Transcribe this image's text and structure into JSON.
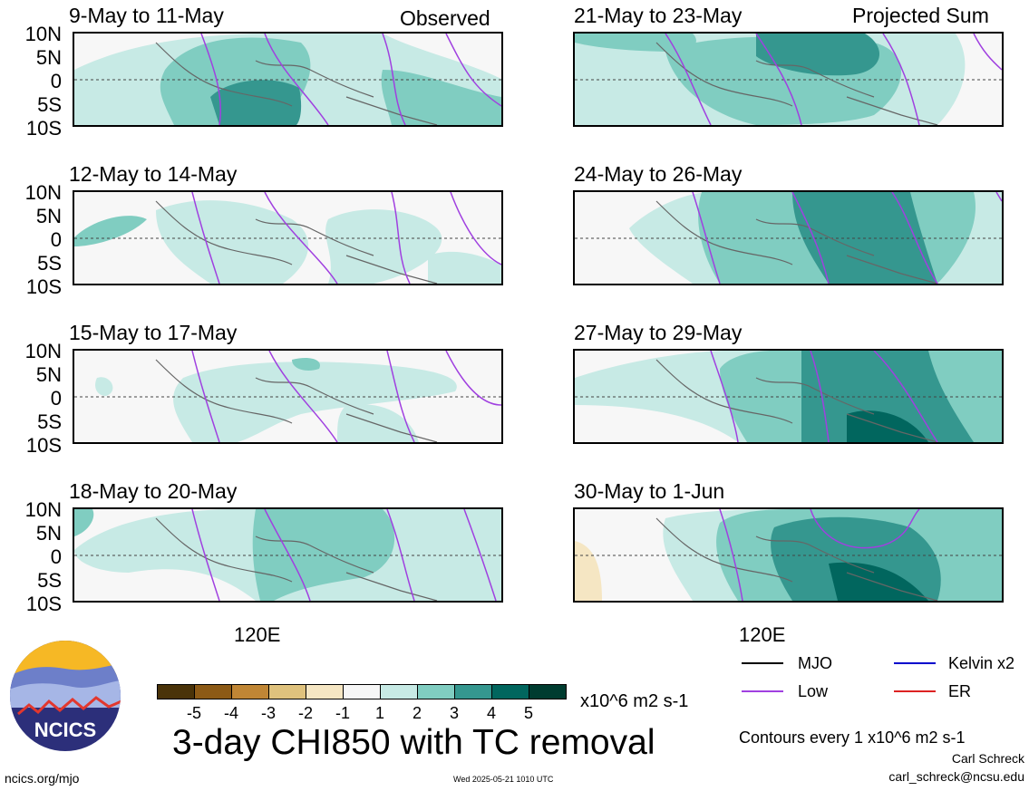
{
  "left_tag": "Observed",
  "right_tag": "Projected Sum",
  "lat_labels": [
    "10N",
    "5N",
    "0",
    "5S",
    "10S"
  ],
  "lon_label": "120E",
  "panels_left": [
    "9-May to 11-May",
    "12-May to 14-May",
    "15-May to 17-May",
    "18-May to 20-May"
  ],
  "panels_right": [
    "21-May to 23-May",
    "24-May to 26-May",
    "27-May to 29-May",
    "30-May to 1-Jun"
  ],
  "colorbar": {
    "ticks": [
      "-5",
      "-4",
      "-3",
      "-2",
      "-1",
      "1",
      "2",
      "3",
      "4",
      "5"
    ],
    "units": "x10^6 m2 s-1",
    "colors": [
      "#4a3309",
      "#8c5a16",
      "#c08635",
      "#dfc27d",
      "#f5e6c3",
      "#f6f6f6",
      "#c7eae5",
      "#80cdc1",
      "#35978f",
      "#01665e",
      "#003c30"
    ]
  },
  "main_title": "3-day CHI850 with TC removal",
  "legend": [
    {
      "label": "MJO",
      "color": "#000000"
    },
    {
      "label": "Low",
      "color": "#a040e0"
    },
    {
      "label": "Kelvin x2",
      "color": "#0000cc"
    },
    {
      "label": "ER",
      "color": "#dd2222"
    }
  ],
  "contour_note": "Contours every 1 x10^6 m2 s-1",
  "author": "Carl Schreck",
  "email": "carl_schreck@ncsu.edu",
  "url": "ncics.org/mjo",
  "timestamp": "Wed 2025-05-21 1010 UTC",
  "logo_text": "NCICS",
  "chart_data": {
    "type": "heatmap",
    "title": "3-day CHI850 with TC removal",
    "variable": "CHI850",
    "units": "x10^6 m2 s-1",
    "latitude_ticks": [
      "10N",
      "5N",
      "0",
      "5S",
      "10S"
    ],
    "longitude_ticks": [
      "120E"
    ],
    "contour_interval": 1,
    "color_levels": [
      -5,
      -4,
      -3,
      -2,
      -1,
      1,
      2,
      3,
      4,
      5
    ],
    "panels": [
      {
        "period": "9-May to 11-May",
        "group": "Observed",
        "approx_max": 3
      },
      {
        "period": "12-May to 14-May",
        "group": "Observed",
        "approx_max": 2
      },
      {
        "period": "15-May to 17-May",
        "group": "Observed",
        "approx_max": 2
      },
      {
        "period": "18-May to 20-May",
        "group": "Observed",
        "approx_max": 2
      },
      {
        "period": "21-May to 23-May",
        "group": "Projected Sum",
        "approx_max": 3
      },
      {
        "period": "24-May to 26-May",
        "group": "Projected Sum",
        "approx_max": 3
      },
      {
        "period": "27-May to 29-May",
        "group": "Projected Sum",
        "approx_max": 4
      },
      {
        "period": "30-May to 1-Jun",
        "group": "Projected Sum",
        "approx_max": 4,
        "approx_min": -1
      }
    ]
  }
}
